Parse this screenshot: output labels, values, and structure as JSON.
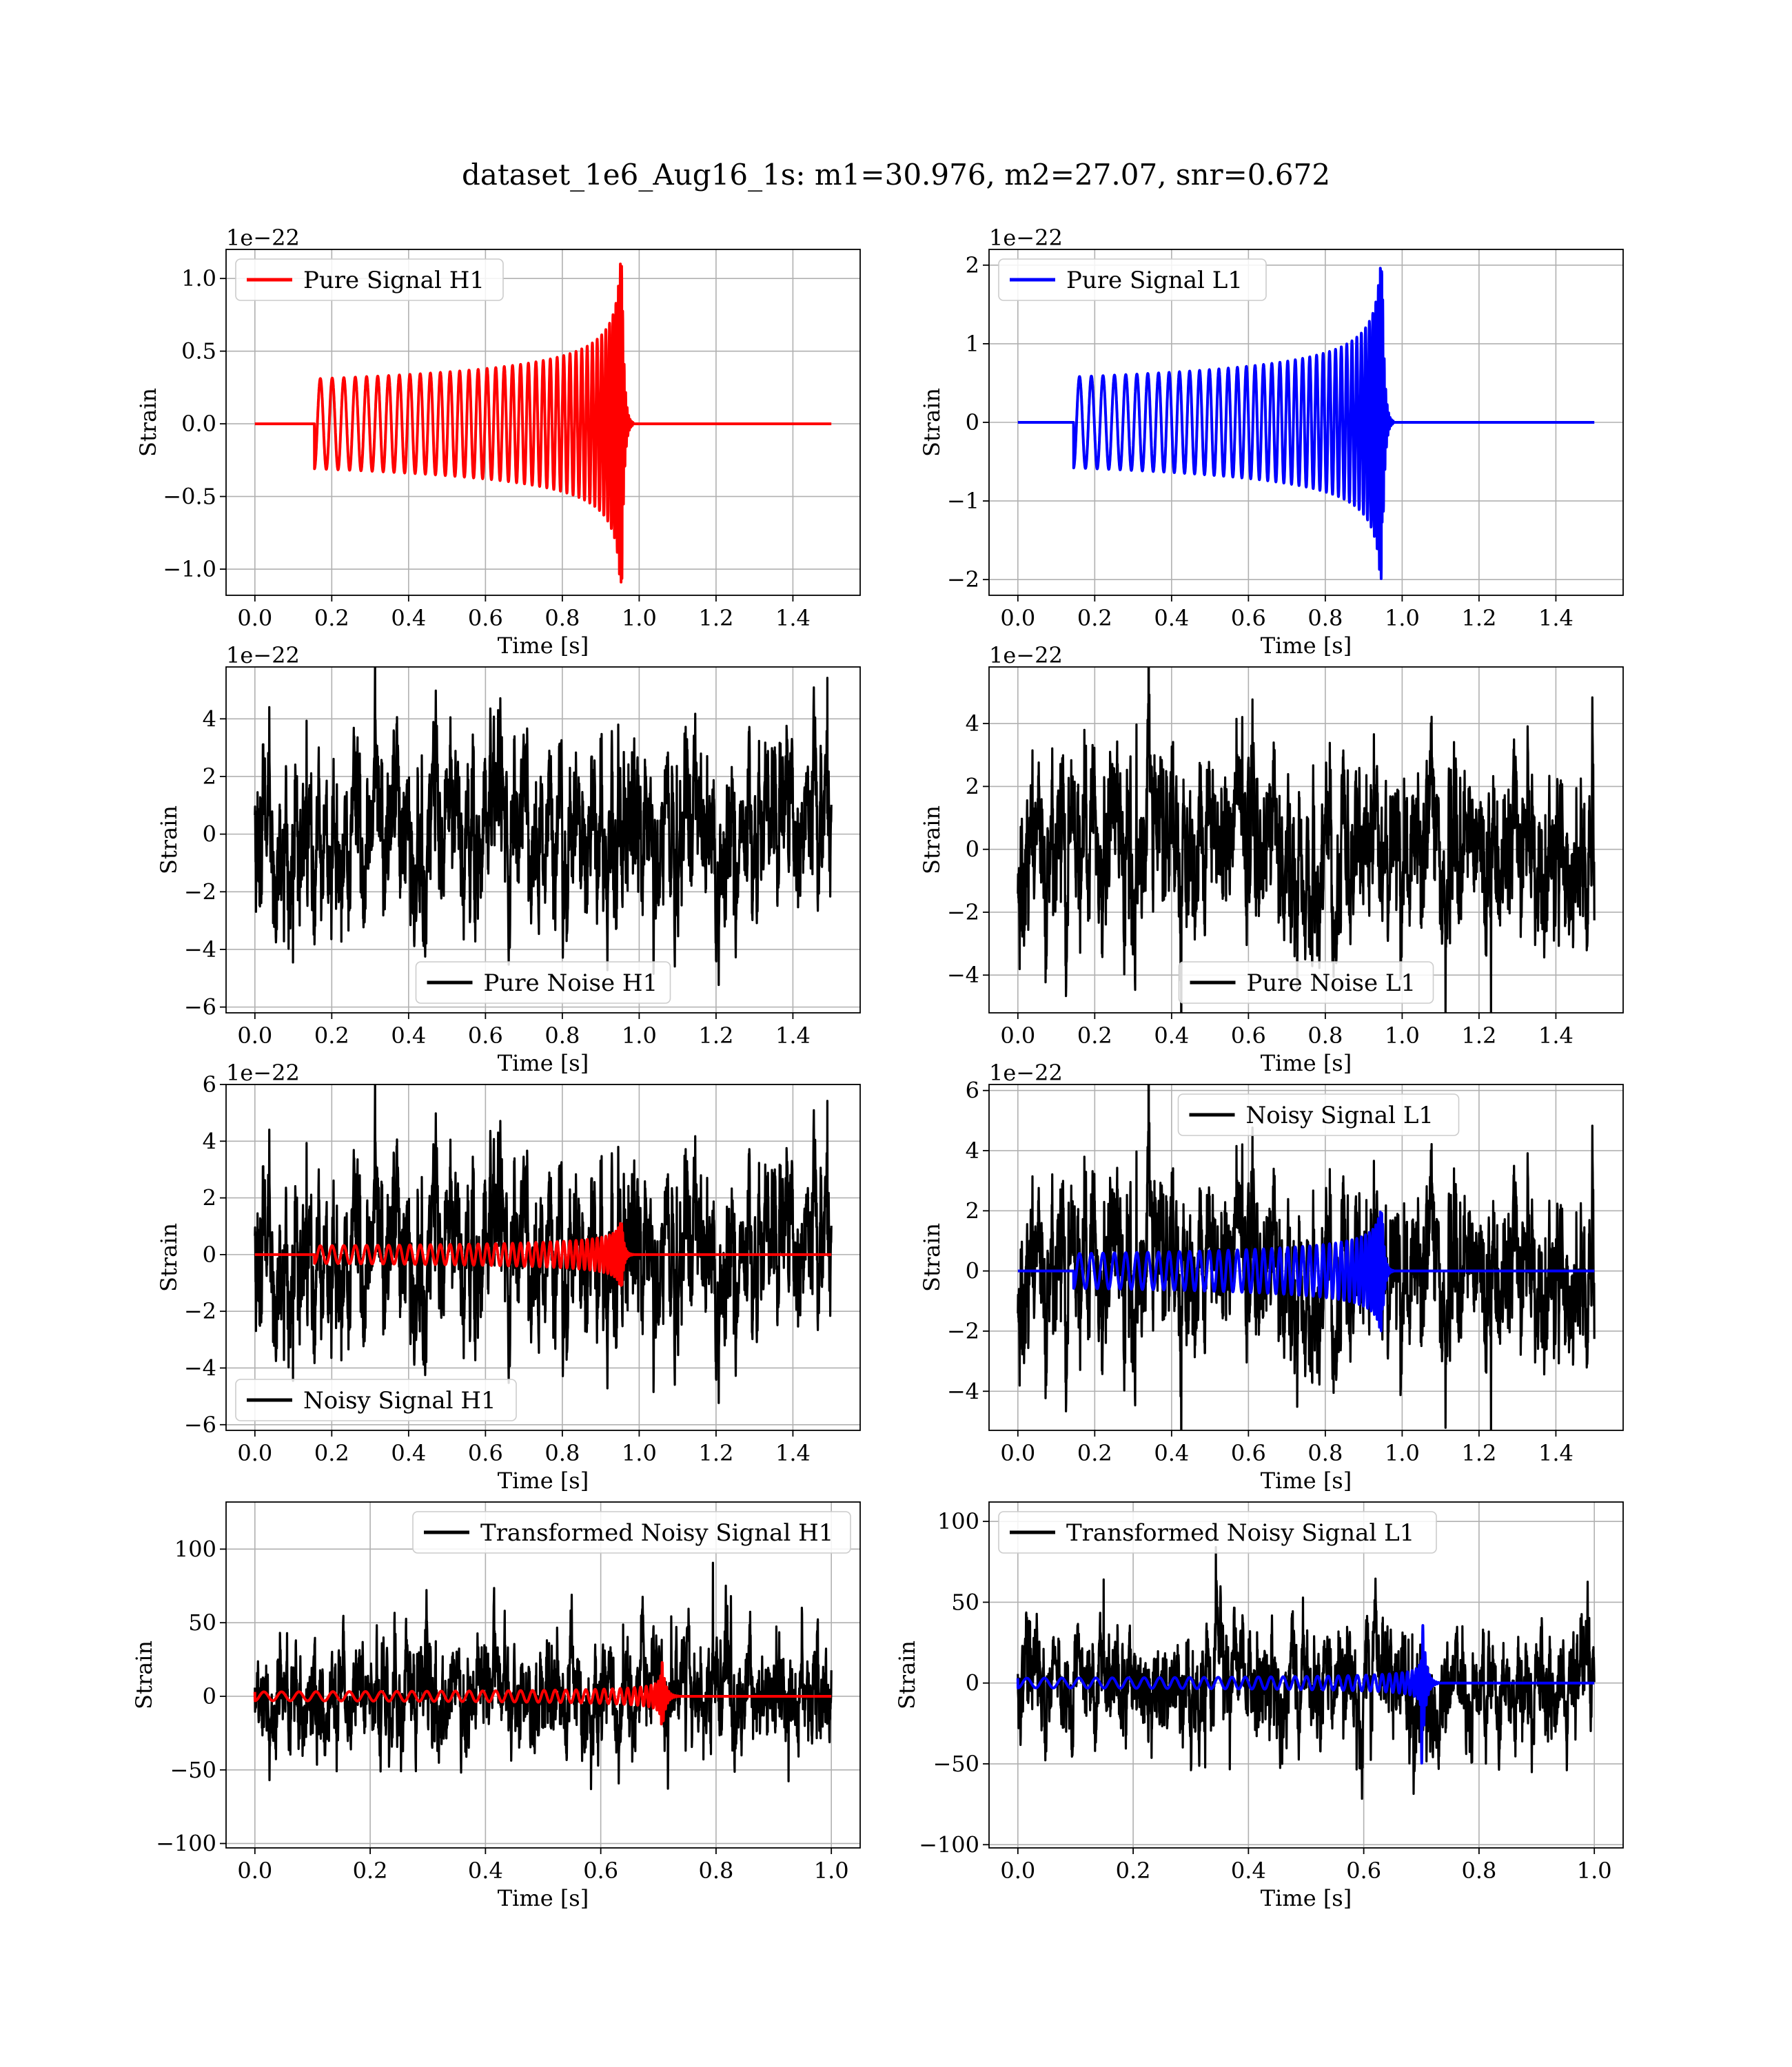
{
  "figure": {
    "title": "dataset_1e6_Aug16_1s: m1=30.976, m2=27.07, snr=0.672"
  },
  "colors": {
    "signal_h1": "#ff0000",
    "signal_l1": "#0000ff",
    "noise": "#000000",
    "grid": "#b0b0b0"
  },
  "chart_data": [
    {
      "id": "pure-signal-h1",
      "type": "line",
      "row": 0,
      "col": 0,
      "xlabel": "Time [s]",
      "ylabel": "Strain",
      "xlim": [
        -0.075,
        1.575
      ],
      "ylim": [
        -1.18,
        1.2
      ],
      "xticks": [
        0.0,
        0.2,
        0.4,
        0.6,
        0.8,
        1.0,
        1.2,
        1.4
      ],
      "yticks": [
        -1.0,
        -0.5,
        0.0,
        0.5,
        1.0
      ],
      "ytick_decimals": 1,
      "offset_text": "1e−22",
      "legend_loc": "upper-left",
      "grid": true,
      "series": [
        {
          "name": "Pure Signal H1",
          "color": "#ff0000",
          "kind": "chirp",
          "t_start": 0.155,
          "t_merge": 0.955,
          "t_end": 1.5,
          "amp_start": 0.31,
          "amp_peak": 1.1
        }
      ]
    },
    {
      "id": "pure-signal-l1",
      "type": "line",
      "row": 0,
      "col": 1,
      "xlabel": "Time [s]",
      "ylabel": "Strain",
      "xlim": [
        -0.075,
        1.575
      ],
      "ylim": [
        -2.2,
        2.2
      ],
      "xticks": [
        0.0,
        0.2,
        0.4,
        0.6,
        0.8,
        1.0,
        1.2,
        1.4
      ],
      "yticks": [
        -2,
        -1,
        0,
        1,
        2
      ],
      "ytick_decimals": 0,
      "offset_text": "1e−22",
      "legend_loc": "upper-left",
      "grid": true,
      "series": [
        {
          "name": "Pure Signal L1",
          "color": "#0000ff",
          "kind": "chirp",
          "t_start": 0.145,
          "t_merge": 0.948,
          "t_end": 1.5,
          "amp_start": 0.58,
          "amp_peak": 2.0
        }
      ]
    },
    {
      "id": "pure-noise-h1",
      "type": "line",
      "row": 1,
      "col": 0,
      "xlabel": "Time [s]",
      "ylabel": "Strain",
      "xlim": [
        -0.075,
        1.575
      ],
      "ylim": [
        -6.2,
        5.8
      ],
      "xticks": [
        0.0,
        0.2,
        0.4,
        0.6,
        0.8,
        1.0,
        1.2,
        1.4
      ],
      "yticks": [
        -6,
        -4,
        -2,
        0,
        2,
        4
      ],
      "ytick_decimals": 0,
      "offset_text": "1e−22",
      "legend_loc": "lower-center",
      "grid": true,
      "series": [
        {
          "name": "Pure Noise H1",
          "color": "#000000",
          "kind": "noise",
          "t_end": 1.5,
          "noise_amp": 1.9,
          "seed": 11
        }
      ]
    },
    {
      "id": "pure-noise-l1",
      "type": "line",
      "row": 1,
      "col": 1,
      "xlabel": "Time [s]",
      "ylabel": "Strain",
      "xlim": [
        -0.075,
        1.575
      ],
      "ylim": [
        -5.2,
        5.8
      ],
      "xticks": [
        0.0,
        0.2,
        0.4,
        0.6,
        0.8,
        1.0,
        1.2,
        1.4
      ],
      "yticks": [
        -4,
        -2,
        0,
        2,
        4
      ],
      "ytick_decimals": 0,
      "offset_text": "1e−22",
      "legend_loc": "lower-center",
      "grid": true,
      "series": [
        {
          "name": "Pure Noise L1",
          "color": "#000000",
          "kind": "noise",
          "t_end": 1.5,
          "noise_amp": 1.8,
          "seed": 23
        }
      ]
    },
    {
      "id": "noisy-signal-h1",
      "type": "line",
      "row": 2,
      "col": 0,
      "xlabel": "Time [s]",
      "ylabel": "Strain",
      "xlim": [
        -0.075,
        1.575
      ],
      "ylim": [
        -6.2,
        6.0
      ],
      "xticks": [
        0.0,
        0.2,
        0.4,
        0.6,
        0.8,
        1.0,
        1.2,
        1.4
      ],
      "yticks": [
        -6,
        -4,
        -2,
        0,
        2,
        4,
        6
      ],
      "ytick_decimals": 0,
      "offset_text": "1e−22",
      "legend_loc": "lower-left",
      "grid": true,
      "series": [
        {
          "name": "Noisy Signal H1",
          "color": "#000000",
          "kind": "noise",
          "t_end": 1.5,
          "noise_amp": 1.9,
          "seed": 11
        },
        {
          "name": "",
          "color": "#ff0000",
          "kind": "chirp",
          "t_start": 0.155,
          "t_merge": 0.955,
          "t_end": 1.5,
          "amp_start": 0.31,
          "amp_peak": 1.1
        }
      ]
    },
    {
      "id": "noisy-signal-l1",
      "type": "line",
      "row": 2,
      "col": 1,
      "xlabel": "Time [s]",
      "ylabel": "Strain",
      "xlim": [
        -0.075,
        1.575
      ],
      "ylim": [
        -5.3,
        6.2
      ],
      "xticks": [
        0.0,
        0.2,
        0.4,
        0.6,
        0.8,
        1.0,
        1.2,
        1.4
      ],
      "yticks": [
        -4,
        -2,
        0,
        2,
        4,
        6
      ],
      "ytick_decimals": 0,
      "offset_text": "1e−22",
      "legend_loc": "upper-center",
      "grid": true,
      "series": [
        {
          "name": "Noisy Signal L1",
          "color": "#000000",
          "kind": "noise",
          "t_end": 1.5,
          "noise_amp": 1.8,
          "seed": 23
        },
        {
          "name": "",
          "color": "#0000ff",
          "kind": "chirp",
          "t_start": 0.145,
          "t_merge": 0.948,
          "t_end": 1.5,
          "amp_start": 0.58,
          "amp_peak": 2.0
        }
      ]
    },
    {
      "id": "transformed-noisy-signal-h1",
      "type": "line",
      "row": 3,
      "col": 0,
      "xlabel": "Time [s]",
      "ylabel": "Strain",
      "xlim": [
        -0.05,
        1.05
      ],
      "ylim": [
        -103,
        132
      ],
      "xticks": [
        0.0,
        0.2,
        0.4,
        0.6,
        0.8,
        1.0
      ],
      "yticks": [
        -100,
        -50,
        0,
        50,
        100
      ],
      "ytick_decimals": 0,
      "offset_text": "",
      "legend_loc": "upper-right",
      "grid": true,
      "series": [
        {
          "name": "Transformed Noisy Signal H1",
          "color": "#000000",
          "kind": "noise",
          "t_end": 1.0,
          "noise_amp": 24,
          "seed": 37
        },
        {
          "name": "",
          "color": "#ff0000",
          "kind": "chirp",
          "t_start": 0.0,
          "t_merge": 0.705,
          "t_end": 1.0,
          "amp_start": 3.0,
          "amp_peak": 30
        }
      ]
    },
    {
      "id": "transformed-noisy-signal-l1",
      "type": "line",
      "row": 3,
      "col": 1,
      "xlabel": "Time [s]",
      "ylabel": "Strain",
      "xlim": [
        -0.05,
        1.05
      ],
      "ylim": [
        -102,
        112
      ],
      "xticks": [
        0.0,
        0.2,
        0.4,
        0.6,
        0.8,
        1.0
      ],
      "yticks": [
        -100,
        -50,
        0,
        50,
        100
      ],
      "ytick_decimals": 0,
      "offset_text": "",
      "legend_loc": "upper-left",
      "grid": true,
      "series": [
        {
          "name": "Transformed Noisy Signal L1",
          "color": "#000000",
          "kind": "noise",
          "t_end": 1.0,
          "noise_amp": 22,
          "seed": 51
        },
        {
          "name": "",
          "color": "#0000ff",
          "kind": "chirp",
          "t_start": 0.0,
          "t_merge": 0.7,
          "t_end": 1.0,
          "amp_start": 3.0,
          "amp_peak": 55
        }
      ]
    }
  ]
}
